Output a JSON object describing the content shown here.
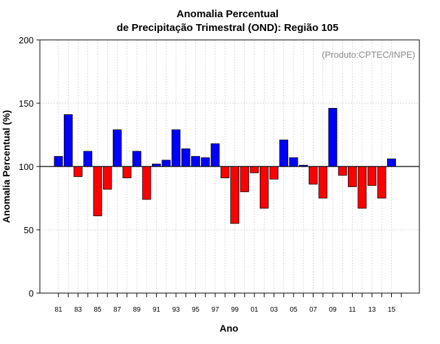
{
  "chart_data": {
    "type": "bar",
    "title_line1": "Anomalia Percentual",
    "title_line2": "de Precipitação Trimestral (OND): Região 105",
    "xlabel": "Ano",
    "ylabel": "Anomalia Percentual (%)",
    "source_note": "(Produto:CPTEC/INPE)",
    "baseline": 100,
    "ylim": [
      0,
      200
    ],
    "yticks": [
      "0",
      "50",
      "100",
      "150",
      "200"
    ],
    "grid": true,
    "colors": {
      "above": "#0000ff",
      "below": "#ff0000",
      "edge": "#000000",
      "grid": "#c8c8c8"
    },
    "categories": [
      "81",
      "82",
      "83",
      "84",
      "85",
      "86",
      "87",
      "88",
      "89",
      "90",
      "91",
      "92",
      "93",
      "94",
      "95",
      "96",
      "97",
      "98",
      "99",
      "00",
      "01",
      "02",
      "03",
      "04",
      "05",
      "06",
      "07",
      "08",
      "09",
      "10",
      "11",
      "12",
      "13",
      "14",
      "15"
    ],
    "xtick_labels": [
      "81",
      "",
      "83",
      "",
      "85",
      "",
      "87",
      "",
      "89",
      "",
      "91",
      "",
      "93",
      "",
      "95",
      "",
      "97",
      "",
      "99",
      "",
      "01",
      "",
      "03",
      "",
      "05",
      "",
      "07",
      "",
      "09",
      "",
      "11",
      "",
      "13",
      "",
      "15"
    ],
    "values": [
      108,
      141,
      92,
      112,
      61,
      82,
      129,
      91,
      112,
      74,
      102,
      105,
      129,
      114,
      108,
      107,
      118,
      91,
      55,
      80,
      95,
      67,
      90,
      121,
      107,
      101,
      86,
      75,
      146,
      93,
      84,
      67,
      85,
      75,
      106
    ]
  }
}
